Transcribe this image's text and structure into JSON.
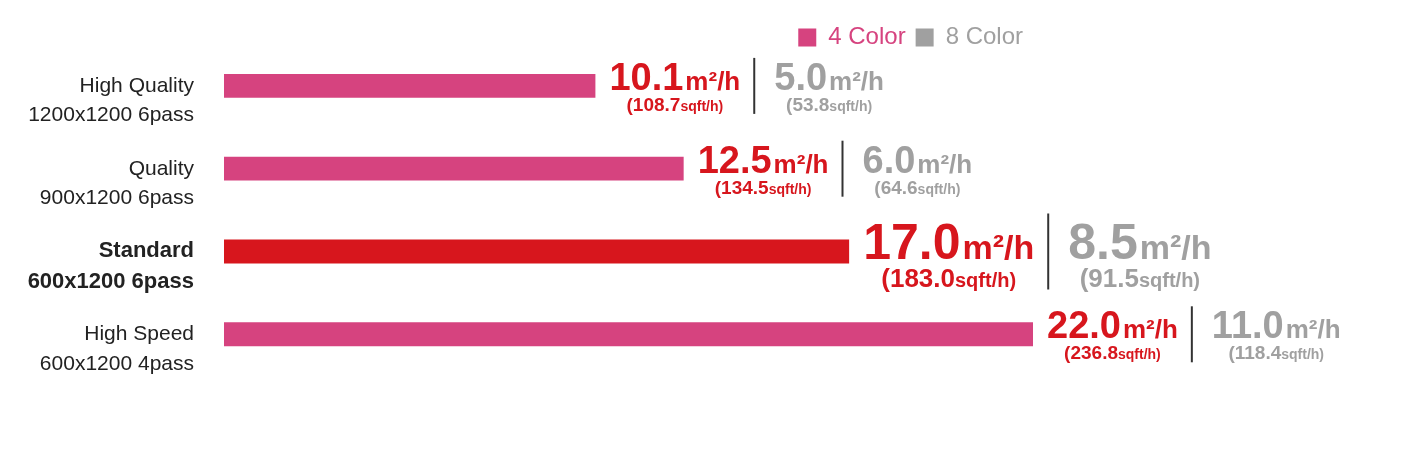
{
  "chart_data": {
    "type": "bar",
    "orientation": "horizontal",
    "categories": [
      "High Quality\n1200x1200 6pass",
      "Quality\n900x1200 6pass",
      "Standard\n600x1200 6pass",
      "High Speed\n600x1200 4pass"
    ],
    "legend": "top right",
    "grid": false,
    "tick_labels": "y",
    "series": [
      {
        "name": "4 Color",
        "color": "#d6437f",
        "colors": [
          "#d6437f",
          "#d6437f",
          "#d7161d",
          "#d6437f"
        ],
        "values": [
          10.1,
          12.5,
          17.0,
          22.0
        ],
        "value_labels": [
          "10.1m²/h",
          "12.5m²/h",
          "17.0m²/h",
          "22.0m²/h"
        ]
      },
      {
        "name": "8 Color",
        "color": "#a0a0a0",
        "values": [
          null,
          null,
          null,
          null
        ]
      }
    ],
    "annotations": [
      {
        "text": "(108.7sqft/h)",
        "x": 10.1,
        "y": "High Quality\n1200x1200 6pass"
      },
      {
        "text": "(134.5sqft/h)",
        "x": 12.5,
        "y": "Quality\n900x1200 6pass"
      },
      {
        "text": "(183.0sqft/h)",
        "x": 17.0,
        "y": "Standard\n600x1200 6pass"
      },
      {
        "text": "(236.8sqft/h)",
        "x": 22.0,
        "y": "High Speed\n600x1200 4pass"
      },
      "5.0m²/h",
      "(53.8sqft/h)",
      "6.0m²/h",
      "(64.6sqft/h)",
      "8.5m²/h",
      "(91.5sqft/h)",
      "11.0m²/h",
      "(118.4sqft/h)"
    ]
  }
}
